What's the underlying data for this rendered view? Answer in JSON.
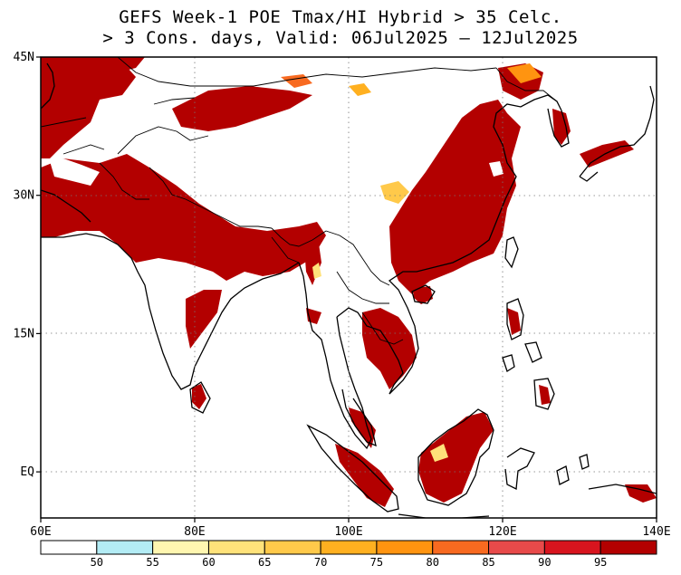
{
  "title": {
    "line1": "GEFS Week-1 POE Tmax/HI Hybrid > 35 Celc.",
    "line2": "> 3 Cons. days, Valid: 06Jul2025 – 12Jul2025"
  },
  "map": {
    "lon_range": [
      60,
      140
    ],
    "lat_range": [
      -5,
      45
    ],
    "lat_ticks": [
      {
        "value": 45,
        "label": "45N"
      },
      {
        "value": 30,
        "label": "30N"
      },
      {
        "value": 15,
        "label": "15N"
      },
      {
        "value": 0,
        "label": "EQ"
      }
    ],
    "lon_ticks": [
      {
        "value": 60,
        "label": "60E"
      },
      {
        "value": 80,
        "label": "80E"
      },
      {
        "value": 100,
        "label": "100E"
      },
      {
        "value": 120,
        "label": "120E"
      },
      {
        "value": 140,
        "label": "140E"
      }
    ],
    "gridlines": "dotted"
  },
  "colorbar": {
    "bins": [
      {
        "color": "#ffffff"
      },
      {
        "color": "#b3ecf5",
        "label": "50"
      },
      {
        "color": "#fff6b0",
        "label": "55"
      },
      {
        "color": "#ffe27a",
        "label": "60"
      },
      {
        "color": "#ffc94a",
        "label": "65"
      },
      {
        "color": "#ffb020",
        "label": "70"
      },
      {
        "color": "#ff9410",
        "label": "75"
      },
      {
        "color": "#f86a20",
        "label": "80"
      },
      {
        "color": "#e84a4a",
        "label": "85"
      },
      {
        "color": "#d8141e",
        "label": "90"
      },
      {
        "color": "#b30000",
        "label": "95"
      }
    ]
  }
}
